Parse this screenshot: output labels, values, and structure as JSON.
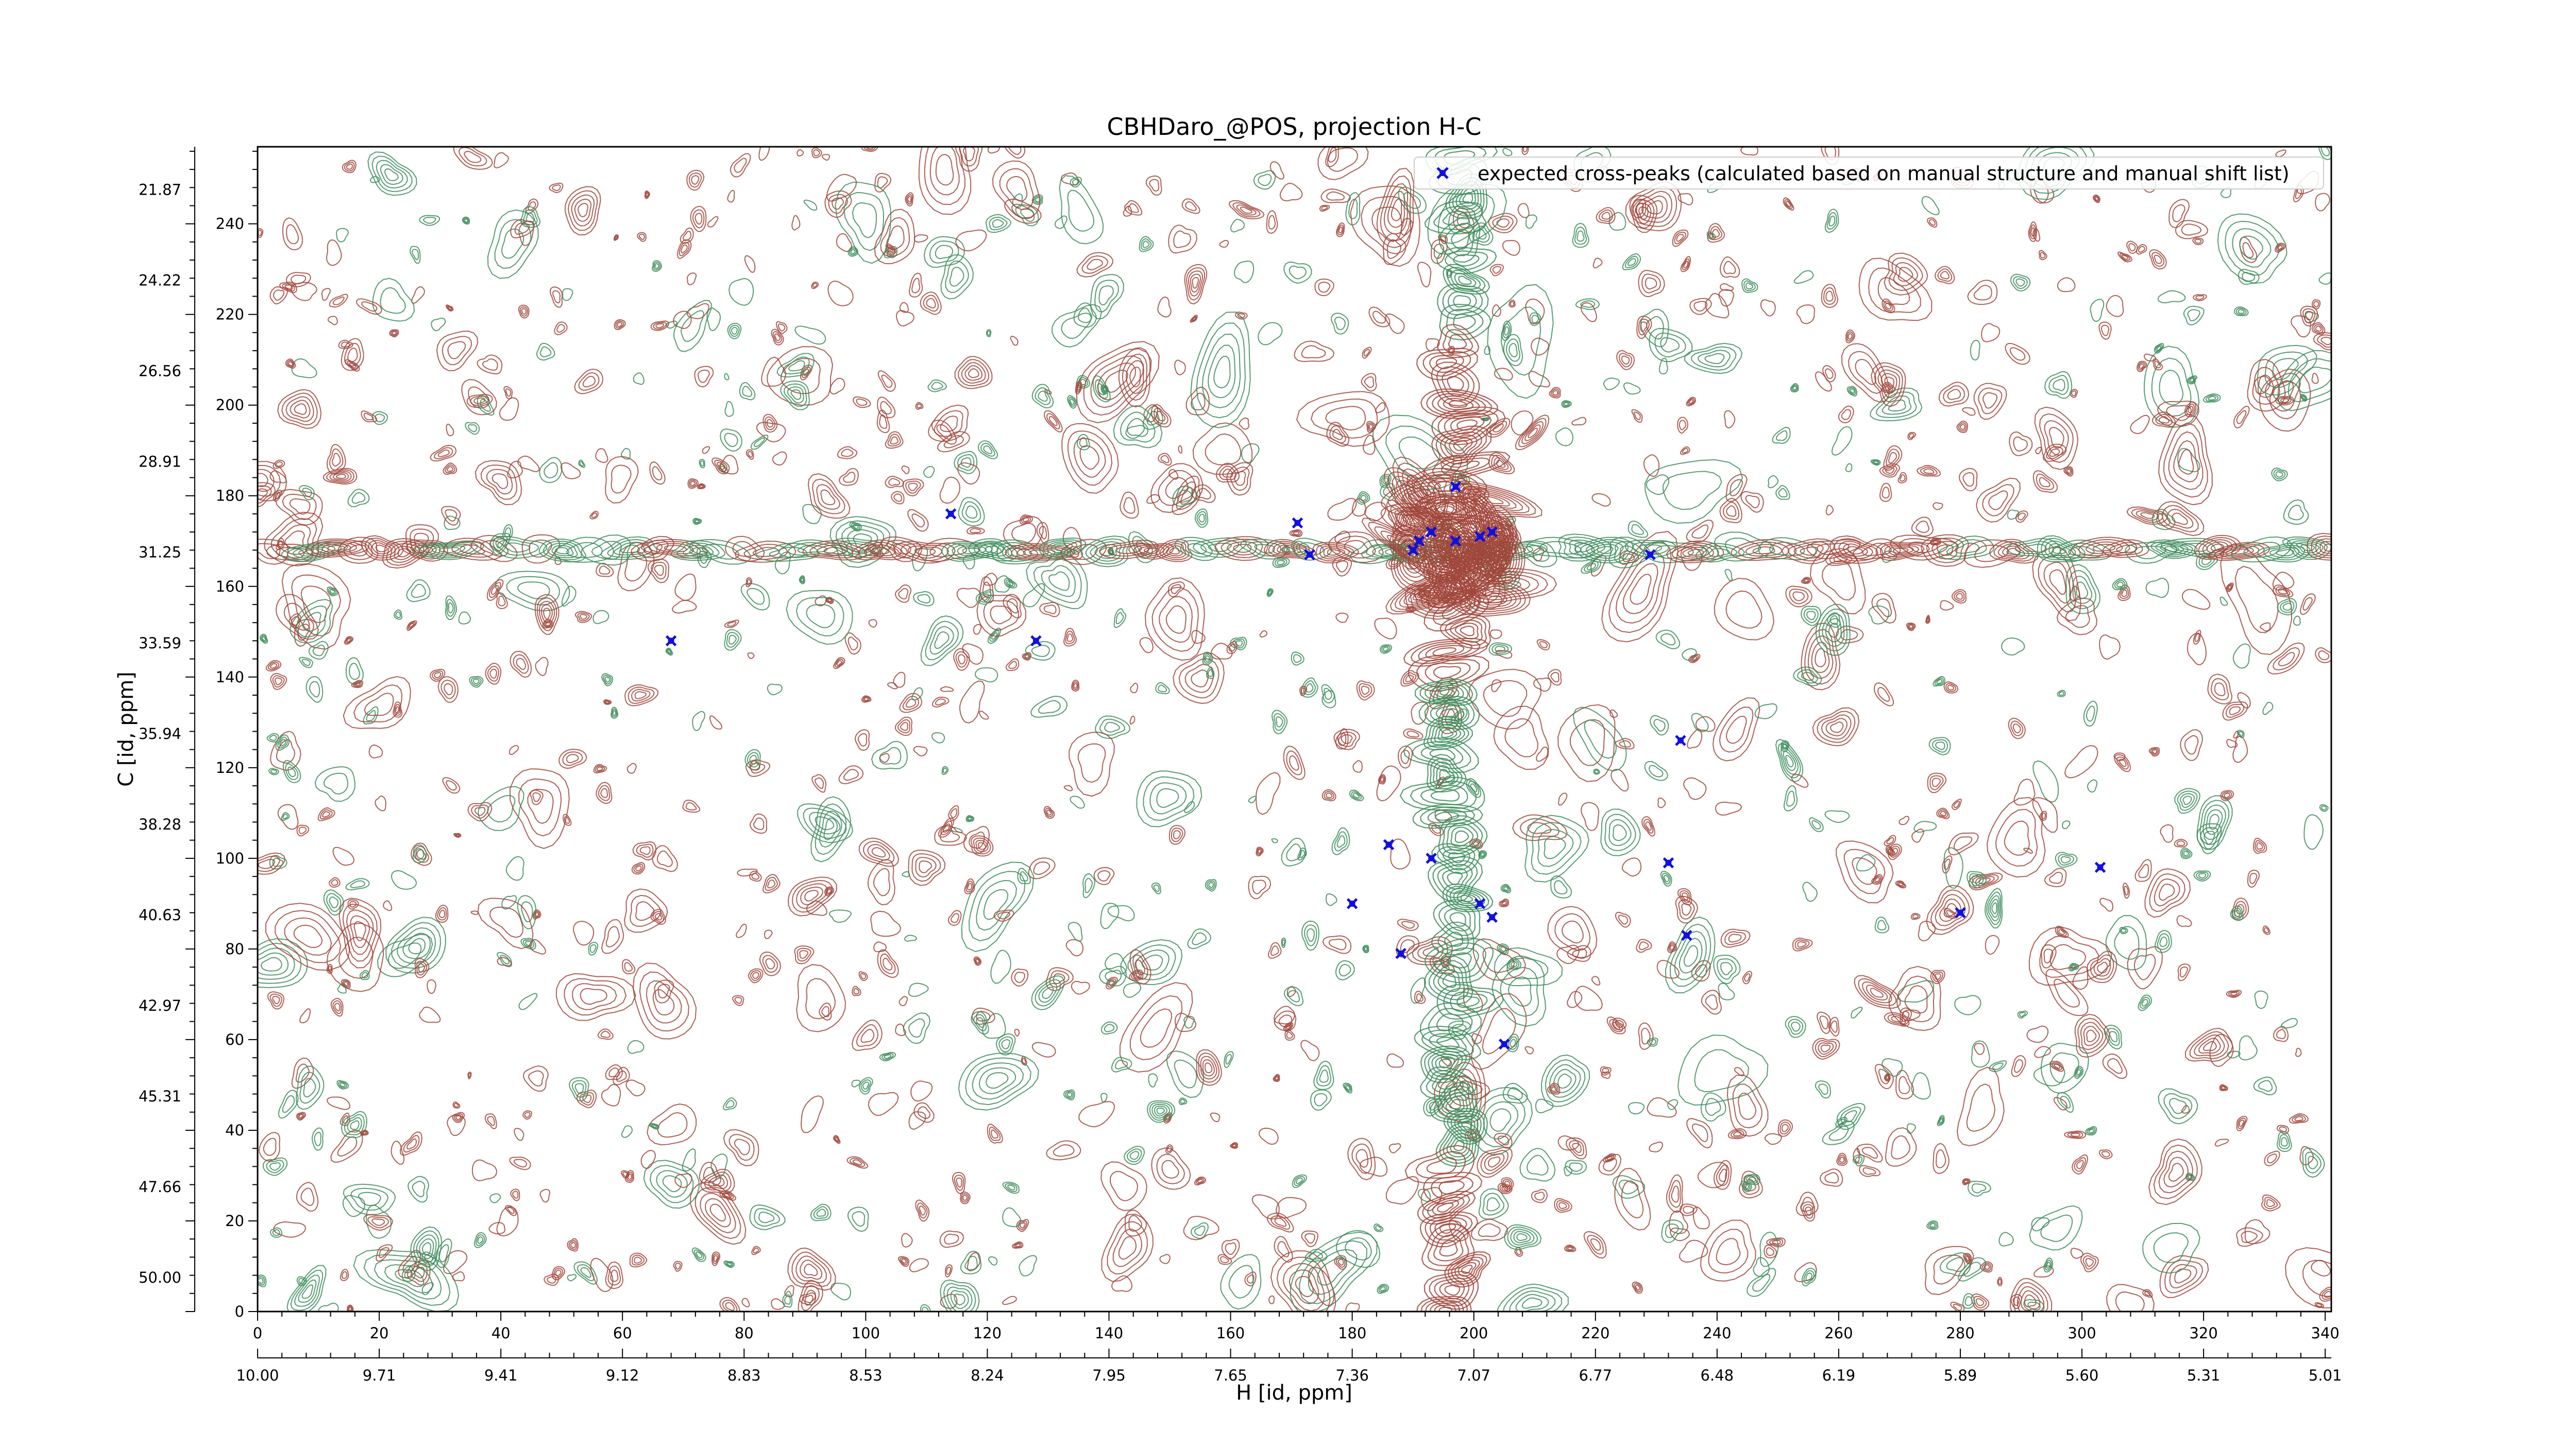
{
  "chart_data": {
    "type": "contour",
    "title": "CBHDaro_@POS, projection H-C",
    "xlabel": "H [id, ppm]",
    "ylabel": "C [id, ppm]",
    "xlim": [
      0,
      341
    ],
    "ylim": [
      0,
      257
    ],
    "x_ticks": [
      0,
      20,
      40,
      60,
      80,
      100,
      120,
      140,
      160,
      180,
      200,
      220,
      240,
      260,
      280,
      300,
      320,
      340
    ],
    "y_ticks": [
      0,
      20,
      40,
      60,
      80,
      100,
      120,
      140,
      160,
      180,
      200,
      220,
      240
    ],
    "x_ppm_ticks": [
      "10.00",
      "9.71",
      "9.41",
      "9.12",
      "8.83",
      "8.53",
      "8.24",
      "7.95",
      "7.65",
      "7.36",
      "7.07",
      "6.77",
      "6.48",
      "6.19",
      "5.89",
      "5.60",
      "5.31",
      "5.01"
    ],
    "y_ppm_ticks": [
      "50.00",
      "47.66",
      "45.31",
      "42.97",
      "40.63",
      "38.28",
      "35.94",
      "33.59",
      "31.25",
      "28.91",
      "26.56",
      "24.22",
      "21.87"
    ],
    "legend": {
      "position": "top-right",
      "entries": [
        {
          "label": "expected cross-peaks (calculated based on manual structure and manual shift list)",
          "color": "#1010e0"
        }
      ]
    },
    "colors": {
      "positive": "#a0453a",
      "negative": "#3c8c5a",
      "peaks": "#1010e0"
    },
    "grid": false,
    "series": [
      {
        "name": "expected cross-peaks (calculated based on manual structure and manual shift list)",
        "type": "scatter",
        "points": [
          [
            68,
            148
          ],
          [
            114,
            176
          ],
          [
            128,
            148
          ],
          [
            171,
            174
          ],
          [
            173,
            167
          ],
          [
            197,
            182
          ],
          [
            191,
            170
          ],
          [
            193,
            172
          ],
          [
            197,
            170
          ],
          [
            201,
            171
          ],
          [
            203,
            172
          ],
          [
            190,
            168
          ],
          [
            229,
            167
          ],
          [
            186,
            103
          ],
          [
            193,
            100
          ],
          [
            180,
            90
          ],
          [
            188,
            79
          ],
          [
            201,
            90
          ],
          [
            203,
            87
          ],
          [
            205,
            59
          ],
          [
            234,
            126
          ],
          [
            232,
            99
          ],
          [
            235,
            83
          ],
          [
            280,
            88
          ],
          [
            303,
            98
          ]
        ]
      }
    ]
  }
}
